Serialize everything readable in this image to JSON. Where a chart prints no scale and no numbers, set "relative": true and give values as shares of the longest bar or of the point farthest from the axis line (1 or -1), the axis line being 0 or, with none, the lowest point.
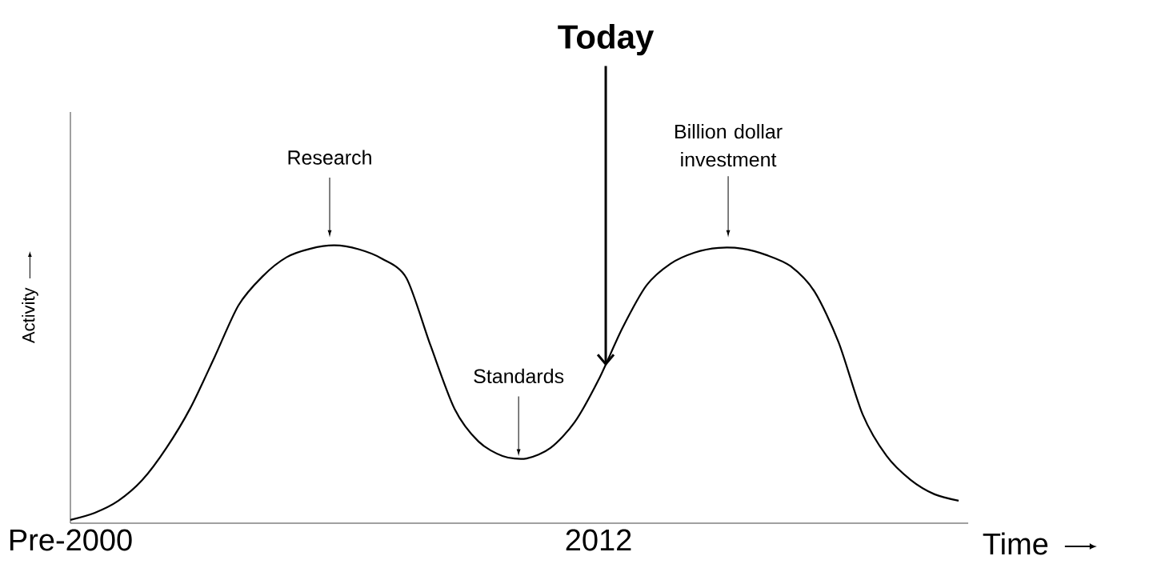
{
  "chart_data": {
    "type": "line",
    "relative": true,
    "xlabel": "Time",
    "ylabel": "Activity",
    "categories": [
      "Pre-2000",
      null,
      null,
      null,
      null,
      null,
      null,
      null,
      null,
      null,
      null,
      null,
      null,
      null,
      null,
      null,
      null,
      null,
      null,
      null,
      null,
      null,
      "2012",
      null,
      null,
      null,
      null,
      null,
      null,
      null,
      null,
      null,
      null,
      null,
      null,
      null,
      null,
      null
    ],
    "color": "#000000",
    "values": [
      0.012,
      0.037,
      0.081,
      0.156,
      0.271,
      0.415,
      0.597,
      0.784,
      0.888,
      0.957,
      0.988,
      1.0,
      0.986,
      0.951,
      0.882,
      0.64,
      0.412,
      0.294,
      0.242,
      0.233,
      0.271,
      0.363,
      0.516,
      0.703,
      0.856,
      0.934,
      0.974,
      0.991,
      0.988,
      0.965,
      0.925,
      0.833,
      0.651,
      0.392,
      0.242,
      0.156,
      0.104,
      0.081
    ],
    "annotations": [
      "Research",
      "Standards",
      "Billion dollar investment",
      "Today"
    ]
  }
}
